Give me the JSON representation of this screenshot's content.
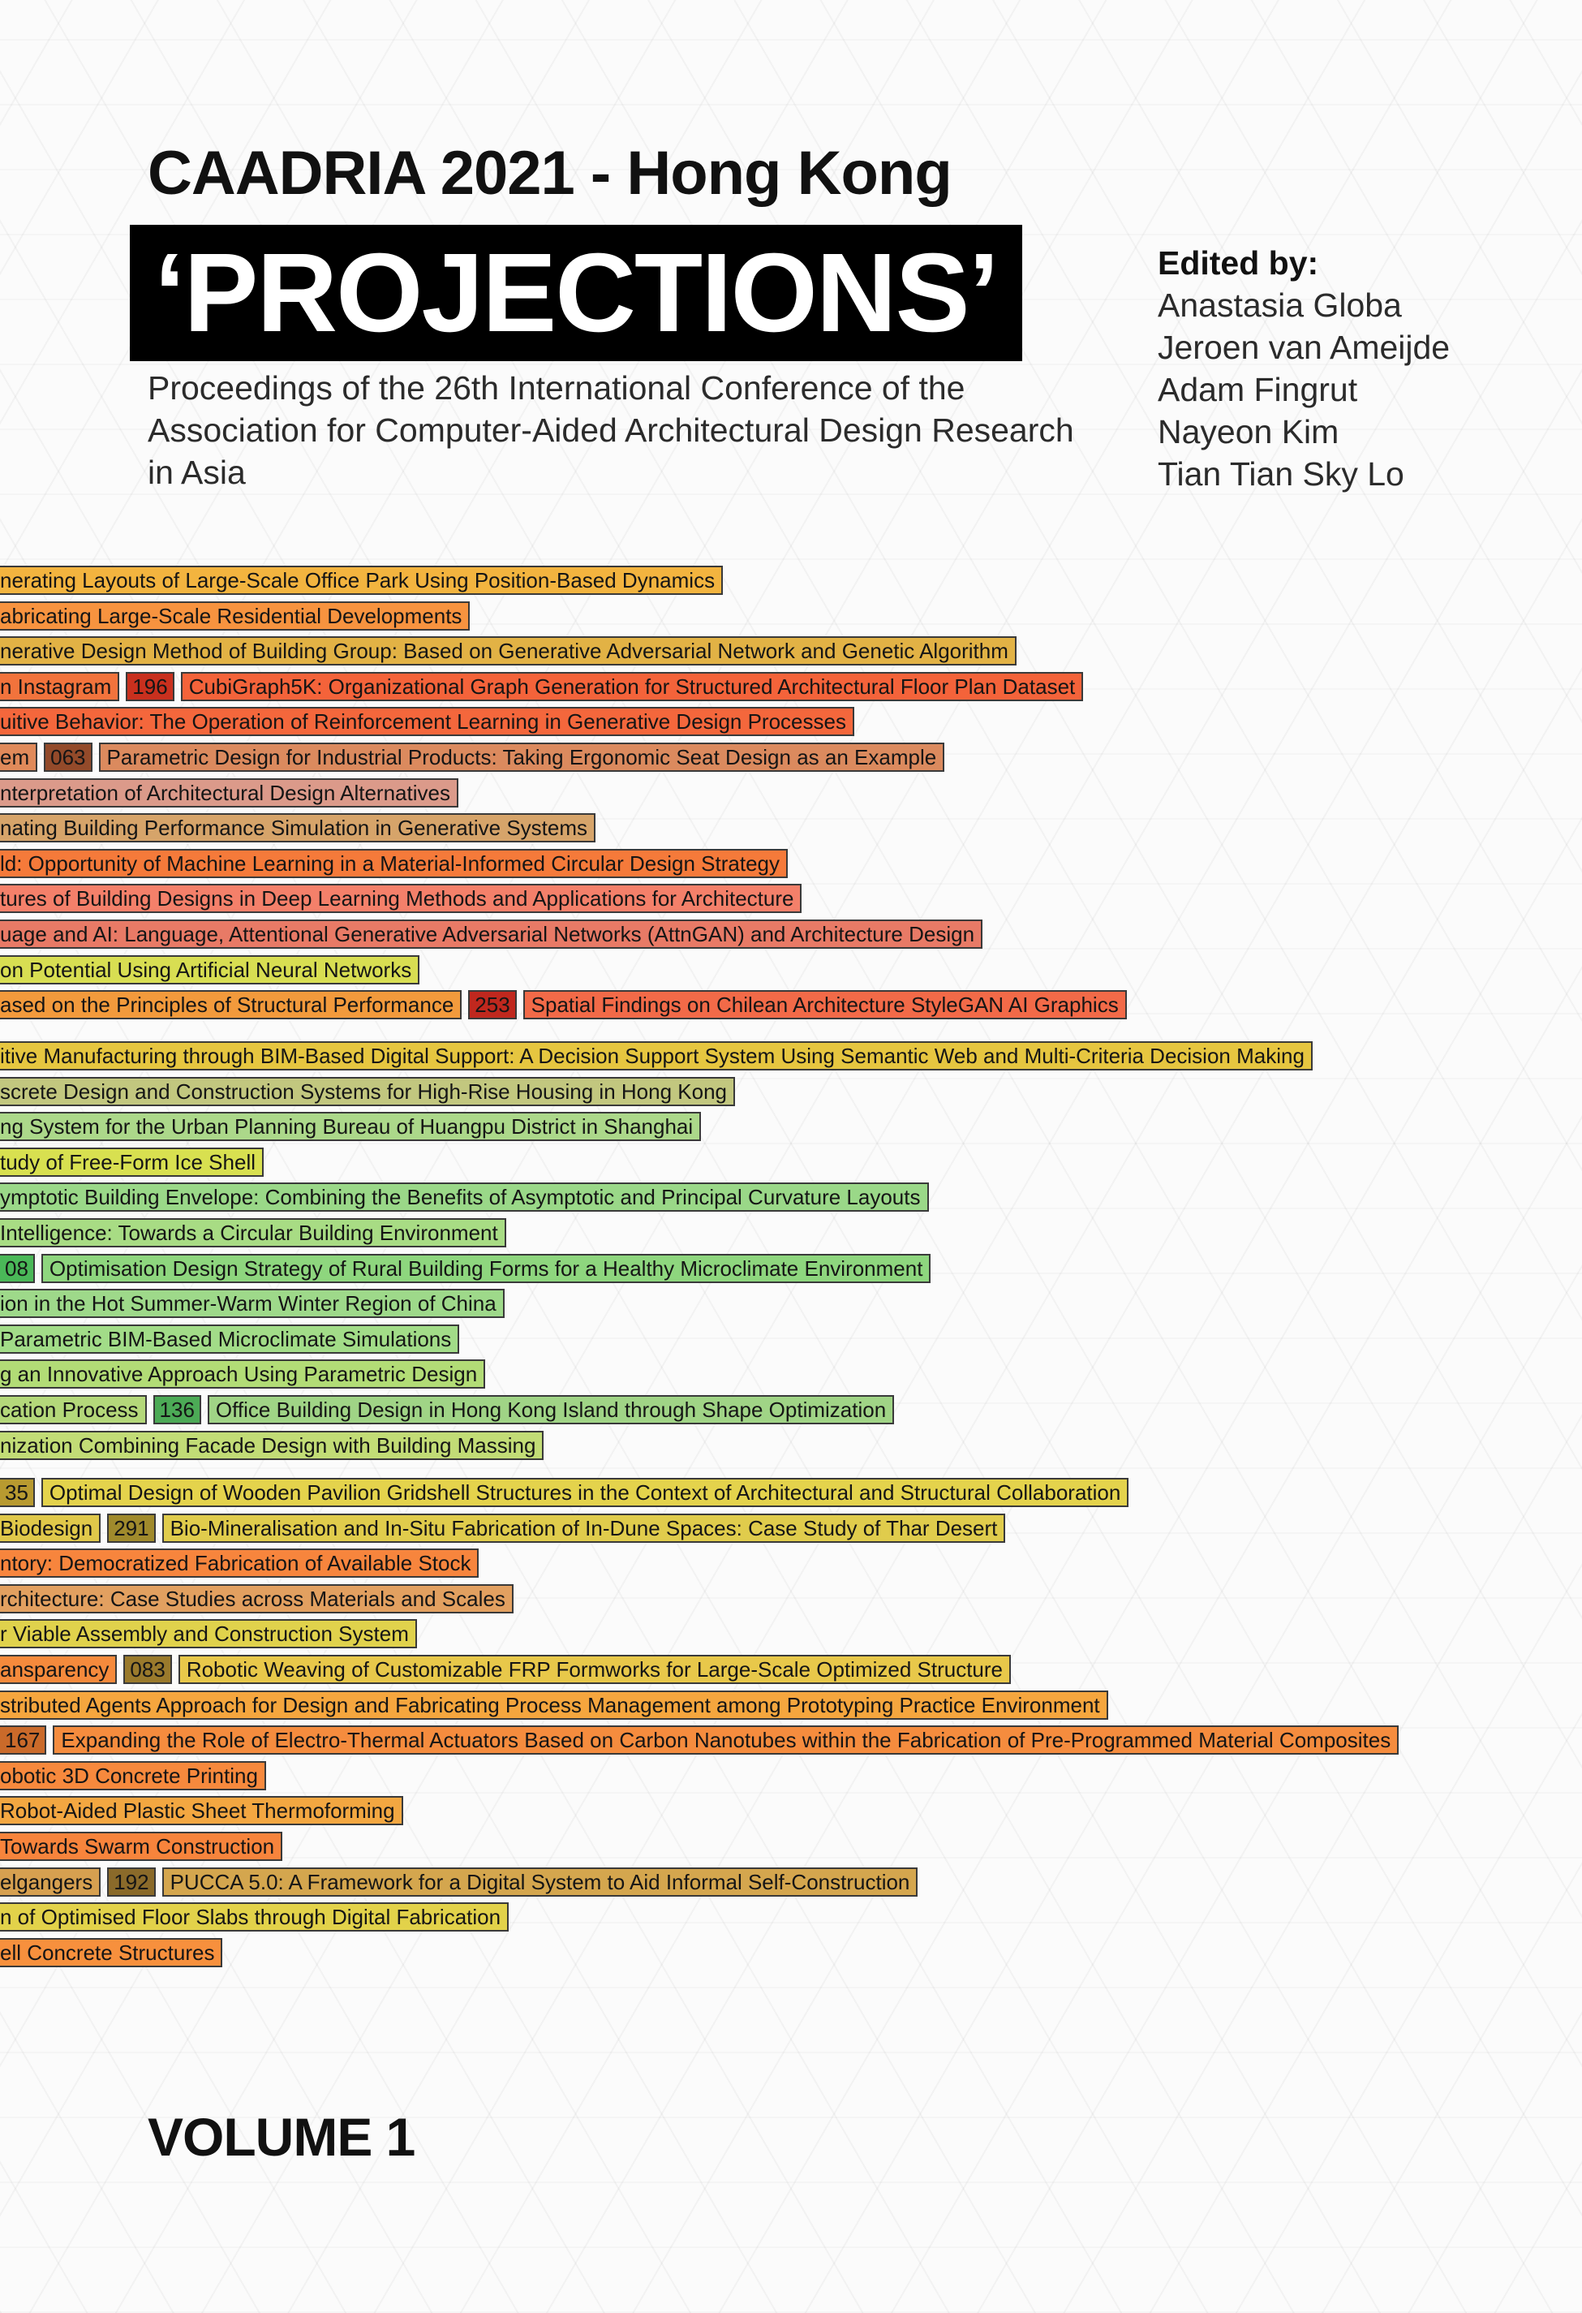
{
  "conference": "CAADRIA 2021 - Hong Kong",
  "title": "‘PROJECTIONS’",
  "subtitle": "Proceedings of the 26th International Conference of the Association for Computer-Aided Architectural Design Research in Asia",
  "editors_label": "Edited by:",
  "editors": [
    "Anastasia Globa",
    "Jeroen van Ameijde",
    "Adam Fingrut",
    "Nayeon Kim",
    "Tian Tian Sky Lo"
  ],
  "volume": "VOLUME 1",
  "paper_rows": [
    [
      {
        "text": "nerating Layouts of Large-Scale Office Park Using Position-Based Dynamics",
        "color": "#f3b43f"
      }
    ],
    [
      {
        "text": "abricating Large-Scale Residential Developments",
        "color": "#f7933f"
      }
    ],
    [
      {
        "text": "nerative Design Method of Building Group: Based on Generative Adversarial Network and Genetic Algorithm",
        "color": "#e2b245"
      }
    ],
    [
      {
        "text": "n Instagram",
        "color": "#f2733c"
      },
      {
        "text": "196",
        "color": "#c9301e"
      },
      {
        "text": "CubiGraph5K: Organizational Graph Generation for Structured Architectural Floor Plan Dataset",
        "color": "#f4633a"
      }
    ],
    [
      {
        "text": "uitive Behavior: The Operation of Reinforcement Learning in Generative Design Processes",
        "color": "#f4673c"
      }
    ],
    [
      {
        "text": "em",
        "color": "#e08a5a"
      },
      {
        "text": "063",
        "color": "#934a2a"
      },
      {
        "text": "Parametric Design for Industrial Products: Taking Ergonomic Seat Design as an Example",
        "color": "#db8a5e"
      }
    ],
    [
      {
        "text": "nterpretation of Architectural Design Alternatives",
        "color": "#db9a8a"
      }
    ],
    [
      {
        "text": "nating Building Performance Simulation in Generative Systems",
        "color": "#d6a46a"
      }
    ],
    [
      {
        "text": "ld: Opportunity of Machine Learning in a Material-Informed Circular Design Strategy",
        "color": "#f57a3a"
      }
    ],
    [
      {
        "text": "tures of Building Designs in Deep Learning Methods and Applications for Architecture",
        "color": "#f4806a"
      }
    ],
    [
      {
        "text": "uage and AI: Language, Attentional Generative Adversarial Networks (AttnGAN) and Architecture Design",
        "color": "#e87a66"
      }
    ],
    [
      {
        "text": "on Potential Using Artificial Neural Networks",
        "color": "#d8de52"
      }
    ],
    [
      {
        "text": "ased on the Principles of Structural Performance",
        "color": "#f29a3c"
      },
      {
        "text": "253",
        "color": "#c0281e"
      },
      {
        "text": "Spatial Findings on Chilean Architecture StyleGAN AI Graphics",
        "color": "#f26a48"
      }
    ],
    [
      {
        "text": "itive Manufacturing through BIM-Based Digital Support: A Decision Support System Using Semantic Web and Multi-Criteria Decision Making",
        "color": "#e6c640"
      }
    ],
    [
      {
        "text": "screte Design and Construction Systems for High-Rise Housing in Hong Kong",
        "color": "#c2c77f"
      }
    ],
    [
      {
        "text": "ng System for the Urban Planning Bureau of Huangpu District in Shanghai",
        "color": "#acd88a"
      }
    ],
    [
      {
        "text": "tudy of Free-Form Ice Shell",
        "color": "#d8e050"
      }
    ],
    [
      {
        "text": "ymptotic Building Envelope: Combining the Benefits of Asymptotic and Principal Curvature Layouts",
        "color": "#9ad888"
      }
    ],
    [
      {
        "text": " Intelligence: Towards a Circular Building Environment",
        "color": "#a8dc84"
      }
    ],
    [
      {
        "text": "08",
        "color": "#4ab858"
      },
      {
        "text": "Optimisation Design Strategy of Rural Building Forms for a Healthy Microclimate Environment",
        "color": "#8ed67e"
      }
    ],
    [
      {
        "text": "ion in the Hot Summer-Warm Winter Region of China",
        "color": "#9ed98a"
      }
    ],
    [
      {
        "text": "Parametric BIM-Based Microclimate Simulations",
        "color": "#a2dc88"
      }
    ],
    [
      {
        "text": "g an Innovative Approach Using Parametric Design",
        "color": "#b2dc76"
      }
    ],
    [
      {
        "text": "cation Process",
        "color": "#b4d87a"
      },
      {
        "text": "136",
        "color": "#4caa56"
      },
      {
        "text": "Office Building Design in Hong Kong Island through Shape Optimization",
        "color": "#a0d486"
      }
    ],
    [
      {
        "text": "nization Combining Facade Design with Building Massing",
        "color": "#c2dc76"
      }
    ],
    [
      {
        "text": "35",
        "color": "#b89a30"
      },
      {
        "text": "Optimal Design of Wooden Pavilion Gridshell Structures in the Context of Architectural and Structural Collaboration",
        "color": "#e4d34c"
      }
    ],
    [
      {
        "text": " Biodesign",
        "color": "#e0c84a"
      },
      {
        "text": "291",
        "color": "#a08a2c"
      },
      {
        "text": "Bio-Mineralisation and In-Situ Fabrication of In-Dune Spaces: Case Study of Thar Desert",
        "color": "#e0cc4c"
      }
    ],
    [
      {
        "text": "ntory: Democratized Fabrication of Available Stock",
        "color": "#f7853d"
      }
    ],
    [
      {
        "text": "rchitecture: Case Studies across Materials and Scales",
        "color": "#e2a060"
      }
    ],
    [
      {
        "text": "r Viable Assembly and Construction System",
        "color": "#e0d24c"
      }
    ],
    [
      {
        "text": "ansparency",
        "color": "#f58a3c"
      },
      {
        "text": "083",
        "color": "#9a7a2c"
      },
      {
        "text": "Robotic Weaving of Customizable FRP Formworks for Large-Scale Optimized Structure",
        "color": "#e8c84a"
      }
    ],
    [
      {
        "text": "stributed Agents Approach for Design and Fabricating Process Management among Prototyping Practice Environment",
        "color": "#f5a63e"
      }
    ],
    [
      {
        "text": "167",
        "color": "#ca6a2a"
      },
      {
        "text": "Expanding the Role of Electro-Thermal Actuators Based on Carbon Nanotubes within the Fabrication of Pre-Programmed Material Composites",
        "color": "#f58c3e"
      }
    ],
    [
      {
        "text": "obotic 3D Concrete Printing",
        "color": "#f7893d"
      }
    ],
    [
      {
        "text": "Robot-Aided Plastic Sheet Thermoforming",
        "color": "#f3a741"
      }
    ],
    [
      {
        "text": "Towards Swarm Construction",
        "color": "#f7843c"
      }
    ],
    [
      {
        "text": "elgangers",
        "color": "#d6a050"
      },
      {
        "text": "192",
        "color": "#8a6a2a"
      },
      {
        "text": "PUCCA 5.0: A Framework for a Digital System to Aid Informal Self-Construction",
        "color": "#d4a64e"
      }
    ],
    [
      {
        "text": "n of Optimised Floor Slabs through Digital Fabrication",
        "color": "#e2d24a"
      }
    ],
    [
      {
        "text": "ell Concrete Structures",
        "color": "#f7903d"
      }
    ]
  ]
}
